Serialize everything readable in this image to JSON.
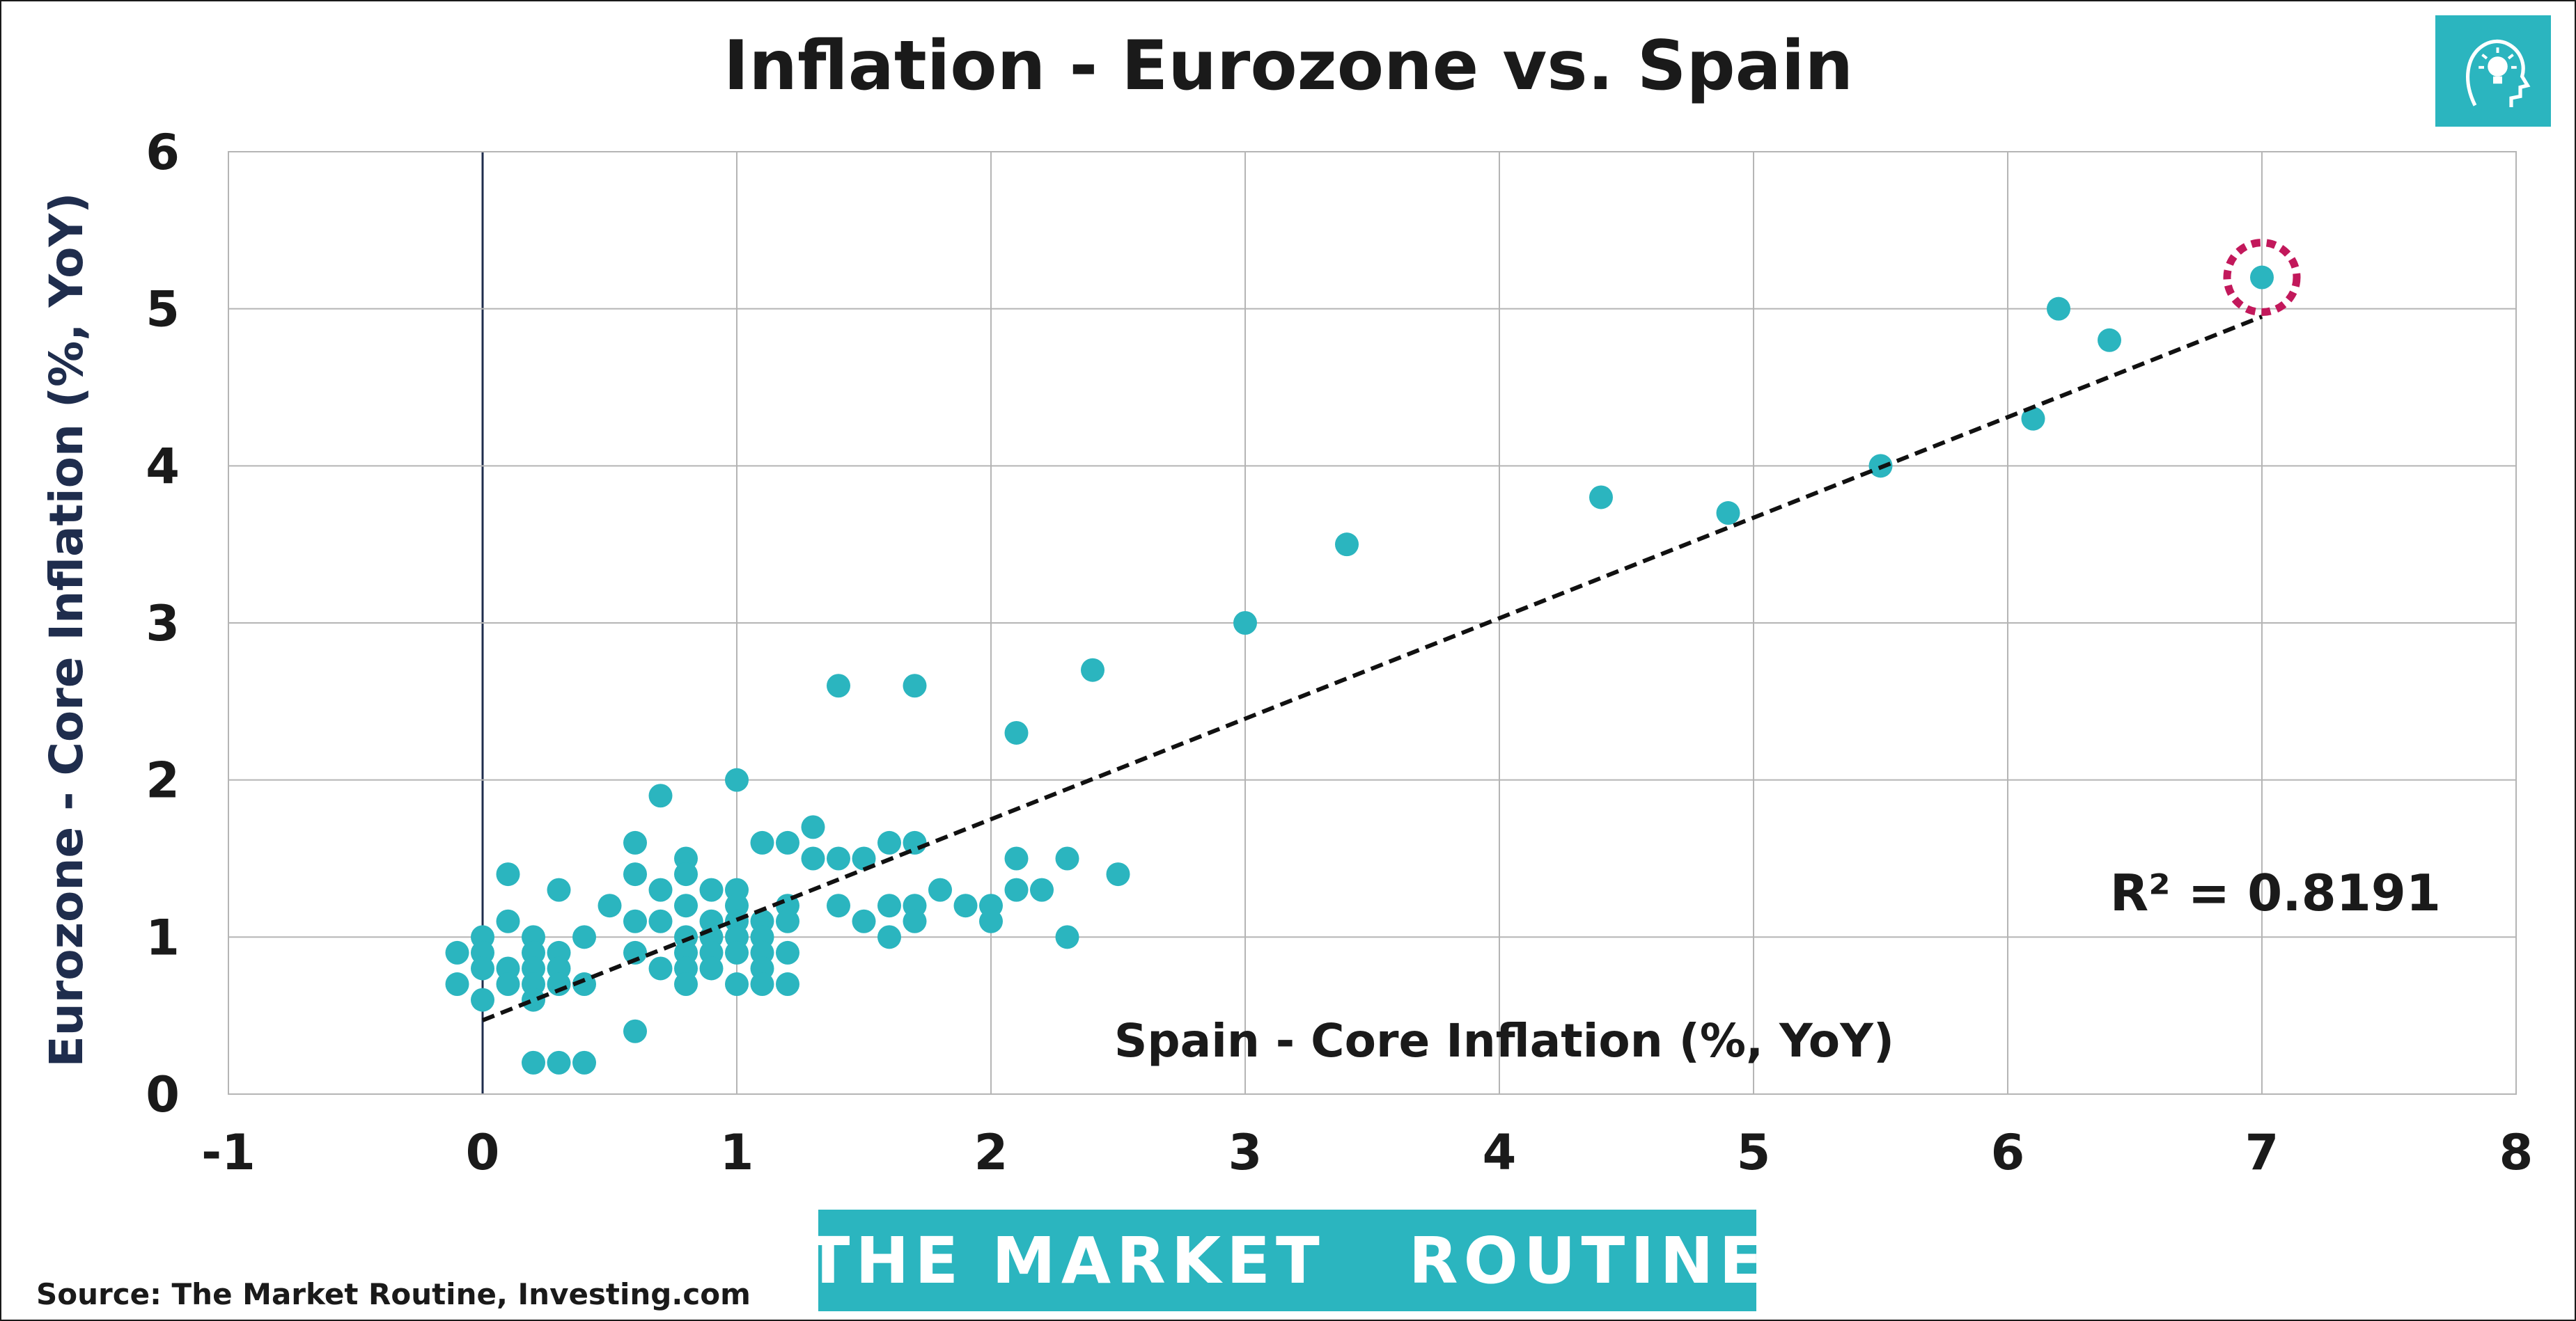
{
  "chart_data": {
    "type": "scatter",
    "title": "Inflation - Eurozone vs. Spain",
    "xlabel": "Spain - Core Inflation (%, YoY)",
    "ylabel": "Eurozone - Core Inflation (%, YoY)",
    "xlim": [
      -1,
      8
    ],
    "ylim": [
      0,
      6
    ],
    "x_ticks": [
      "-1",
      "0",
      "1",
      "2",
      "3",
      "4",
      "5",
      "6",
      "7",
      "8"
    ],
    "y_ticks": [
      "0",
      "1",
      "2",
      "3",
      "4",
      "5",
      "6"
    ],
    "grid": true,
    "trendline": {
      "type": "linear",
      "style": "dashed",
      "from": [
        0,
        0.47
      ],
      "to": [
        7,
        4.95
      ]
    },
    "annotation": "R² = 0.8191",
    "highlighted_point": [
      7.0,
      5.2
    ],
    "colors": {
      "points": "#2bb5bf",
      "highlight": "#c2185b",
      "trendline": "#111111",
      "grid": "#b5b5b5",
      "zero_line": "#1f2d4d"
    },
    "points": [
      [
        -0.1,
        0.9
      ],
      [
        -0.1,
        0.7
      ],
      [
        0.0,
        1.0
      ],
      [
        0.0,
        0.9
      ],
      [
        0.0,
        0.8
      ],
      [
        0.0,
        0.6
      ],
      [
        0.1,
        1.4
      ],
      [
        0.1,
        1.1
      ],
      [
        0.1,
        0.8
      ],
      [
        0.1,
        0.7
      ],
      [
        0.2,
        1.0
      ],
      [
        0.2,
        0.9
      ],
      [
        0.2,
        0.8
      ],
      [
        0.2,
        0.7
      ],
      [
        0.2,
        0.6
      ],
      [
        0.2,
        0.2
      ],
      [
        0.3,
        1.3
      ],
      [
        0.3,
        0.9
      ],
      [
        0.3,
        0.8
      ],
      [
        0.3,
        0.7
      ],
      [
        0.3,
        0.2
      ],
      [
        0.4,
        1.0
      ],
      [
        0.4,
        0.7
      ],
      [
        0.4,
        0.2
      ],
      [
        0.5,
        1.2
      ],
      [
        0.6,
        1.6
      ],
      [
        0.6,
        1.4
      ],
      [
        0.6,
        1.1
      ],
      [
        0.6,
        0.9
      ],
      [
        0.6,
        0.4
      ],
      [
        0.7,
        1.9
      ],
      [
        0.7,
        1.3
      ],
      [
        0.7,
        1.1
      ],
      [
        0.7,
        0.8
      ],
      [
        0.8,
        1.5
      ],
      [
        0.8,
        1.4
      ],
      [
        0.8,
        1.2
      ],
      [
        0.8,
        1.0
      ],
      [
        0.8,
        0.9
      ],
      [
        0.8,
        0.8
      ],
      [
        0.8,
        0.7
      ],
      [
        0.9,
        1.3
      ],
      [
        0.9,
        1.1
      ],
      [
        0.9,
        1.0
      ],
      [
        0.9,
        0.9
      ],
      [
        0.9,
        0.8
      ],
      [
        1.0,
        2.0
      ],
      [
        1.0,
        1.3
      ],
      [
        1.0,
        1.2
      ],
      [
        1.0,
        1.1
      ],
      [
        1.0,
        1.0
      ],
      [
        1.0,
        0.9
      ],
      [
        1.0,
        0.7
      ],
      [
        1.1,
        1.6
      ],
      [
        1.1,
        1.1
      ],
      [
        1.1,
        1.0
      ],
      [
        1.1,
        0.9
      ],
      [
        1.1,
        0.8
      ],
      [
        1.1,
        0.7
      ],
      [
        1.2,
        1.6
      ],
      [
        1.2,
        1.2
      ],
      [
        1.2,
        1.1
      ],
      [
        1.2,
        0.9
      ],
      [
        1.2,
        0.7
      ],
      [
        1.3,
        1.7
      ],
      [
        1.3,
        1.5
      ],
      [
        1.4,
        2.6
      ],
      [
        1.4,
        1.5
      ],
      [
        1.4,
        1.2
      ],
      [
        1.5,
        1.5
      ],
      [
        1.5,
        1.1
      ],
      [
        1.6,
        1.6
      ],
      [
        1.6,
        1.2
      ],
      [
        1.6,
        1.0
      ],
      [
        1.7,
        2.6
      ],
      [
        1.7,
        1.6
      ],
      [
        1.7,
        1.2
      ],
      [
        1.7,
        1.1
      ],
      [
        1.8,
        1.3
      ],
      [
        1.9,
        1.2
      ],
      [
        2.0,
        1.2
      ],
      [
        2.0,
        1.1
      ],
      [
        2.1,
        2.3
      ],
      [
        2.1,
        1.5
      ],
      [
        2.1,
        1.3
      ],
      [
        2.2,
        1.3
      ],
      [
        2.3,
        1.5
      ],
      [
        2.3,
        1.0
      ],
      [
        2.4,
        2.7
      ],
      [
        2.5,
        1.4
      ],
      [
        3.0,
        3.0
      ],
      [
        3.4,
        3.5
      ],
      [
        4.4,
        3.8
      ],
      [
        4.9,
        3.7
      ],
      [
        5.5,
        4.0
      ],
      [
        6.1,
        4.3
      ],
      [
        6.2,
        5.0
      ],
      [
        6.4,
        4.8
      ],
      [
        7.0,
        5.2
      ]
    ]
  },
  "source": "Source: The Market Routine, Investing.com",
  "brand": {
    "left": "THE MARKET",
    "right": "ROUTINE",
    "icon": "lightbulb-head-icon"
  },
  "corner_logo": {
    "icon": "lightbulb-head-icon"
  }
}
